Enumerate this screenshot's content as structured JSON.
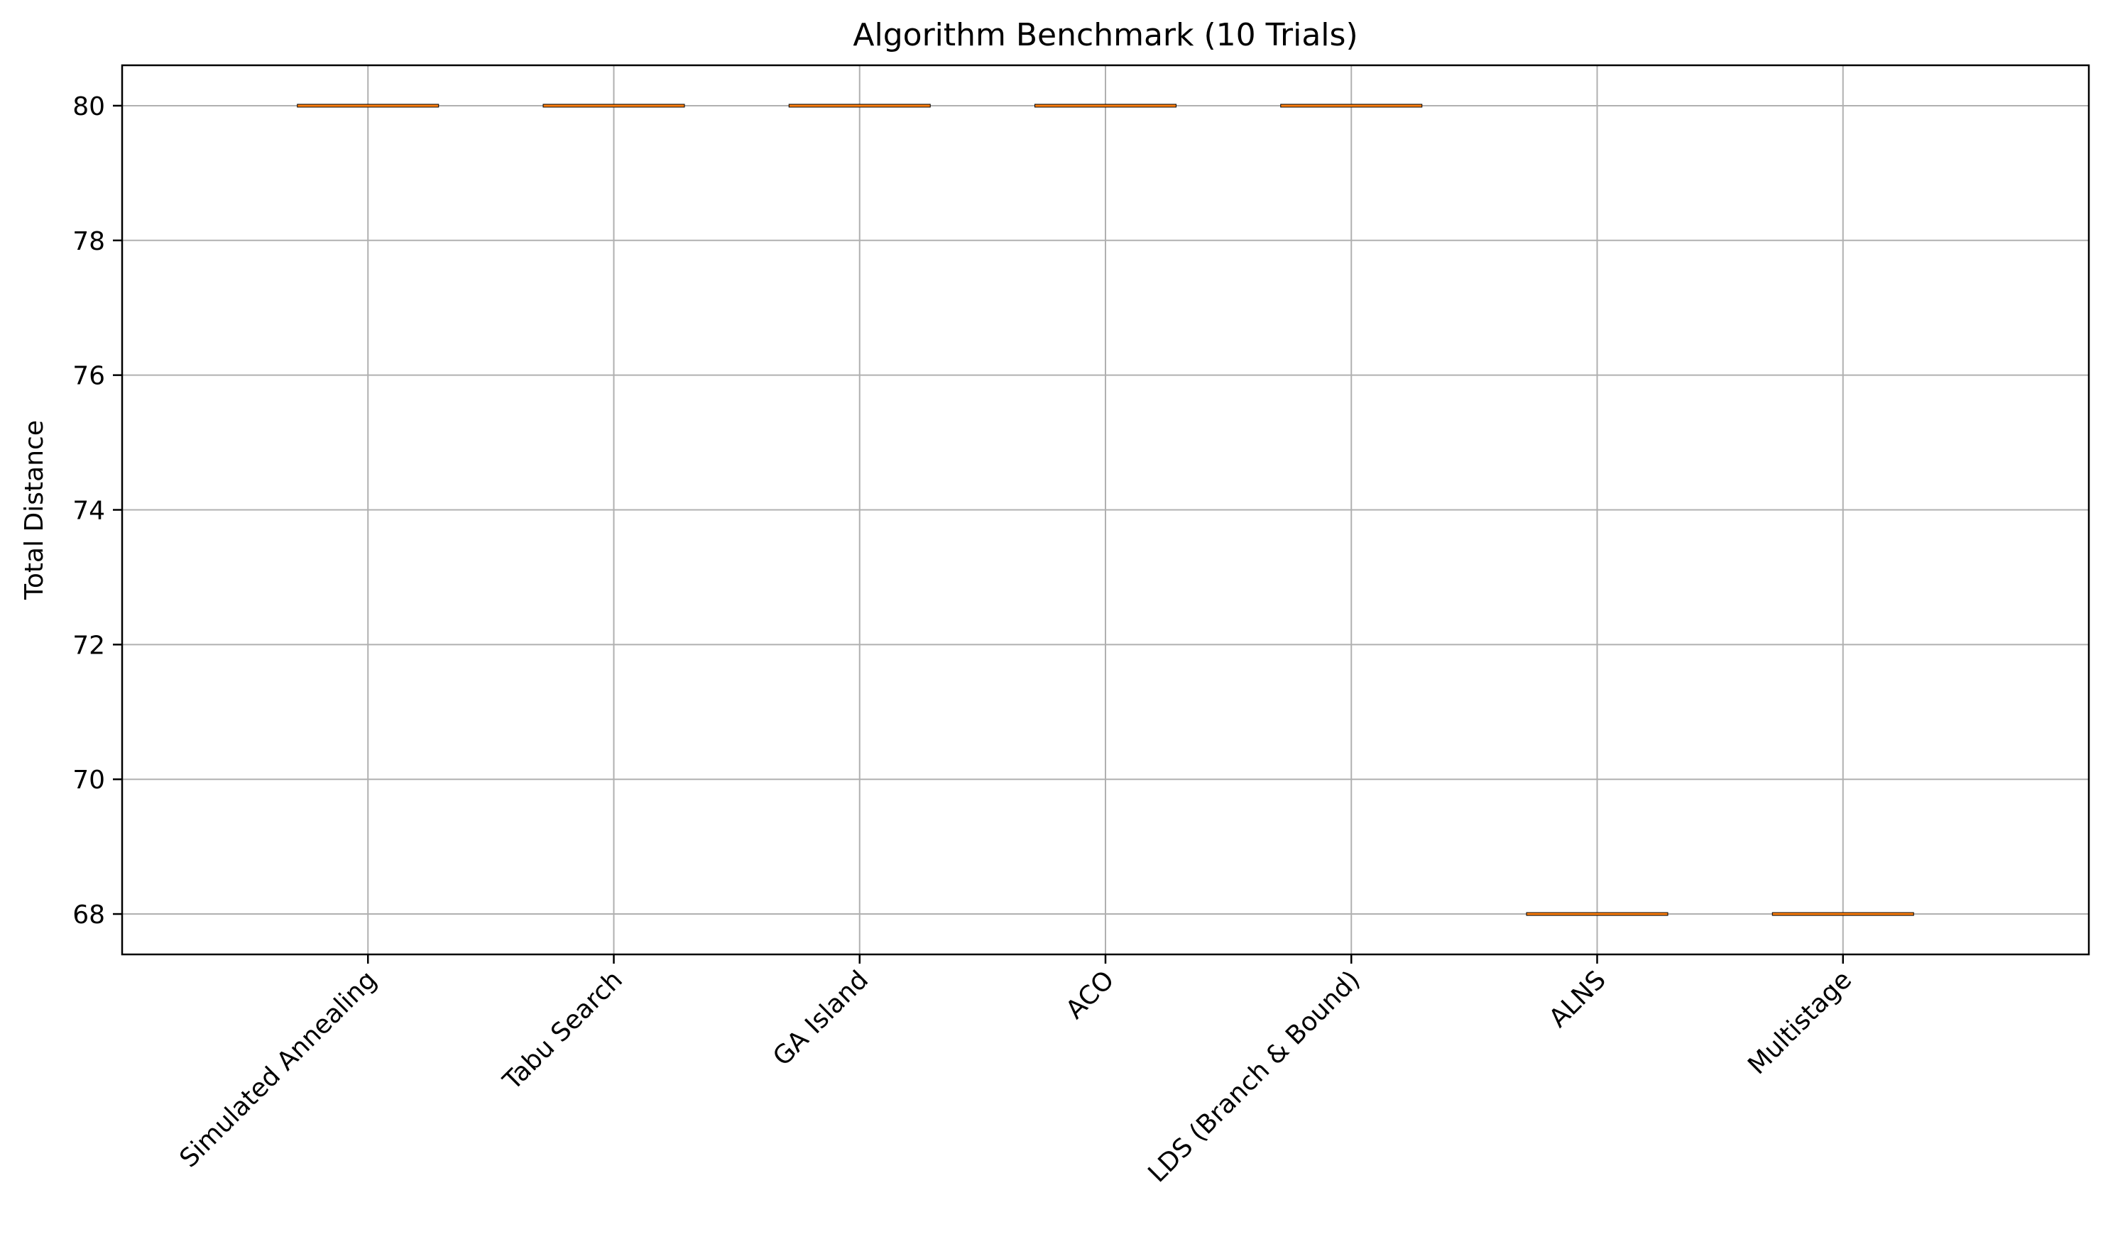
{
  "chart_data": {
    "type": "box",
    "title": "Algorithm Benchmark (10 Trials)",
    "xlabel": "",
    "ylabel": "Total Distance",
    "categories": [
      "Simulated Annealing",
      "Tabu Search",
      "GA Island",
      "ACO",
      "LDS (Branch & Bound)",
      "ALNS",
      "Multistage"
    ],
    "series": [
      {
        "values": [
          80,
          80,
          80,
          80,
          80,
          68,
          68
        ],
        "stats": [
          {
            "min": 80,
            "q1": 80,
            "median": 80,
            "q3": 80,
            "max": 80
          },
          {
            "min": 80,
            "q1": 80,
            "median": 80,
            "q3": 80,
            "max": 80
          },
          {
            "min": 80,
            "q1": 80,
            "median": 80,
            "q3": 80,
            "max": 80
          },
          {
            "min": 80,
            "q1": 80,
            "median": 80,
            "q3": 80,
            "max": 80
          },
          {
            "min": 80,
            "q1": 80,
            "median": 80,
            "q3": 80,
            "max": 80
          },
          {
            "min": 68,
            "q1": 68,
            "median": 68,
            "q3": 68,
            "max": 68
          },
          {
            "min": 68,
            "q1": 68,
            "median": 68,
            "q3": 68,
            "max": 68
          }
        ]
      }
    ],
    "y_ticks": [
      68,
      70,
      72,
      74,
      76,
      78,
      80
    ],
    "ylim": [
      67.4,
      80.6
    ],
    "grid": true,
    "x_tick_rotation_deg": 45,
    "colors": {
      "median": "#ff7f0e",
      "box": "#000000",
      "grid": "#b0b0b0",
      "axes": "#000000",
      "background": "#ffffff"
    }
  }
}
